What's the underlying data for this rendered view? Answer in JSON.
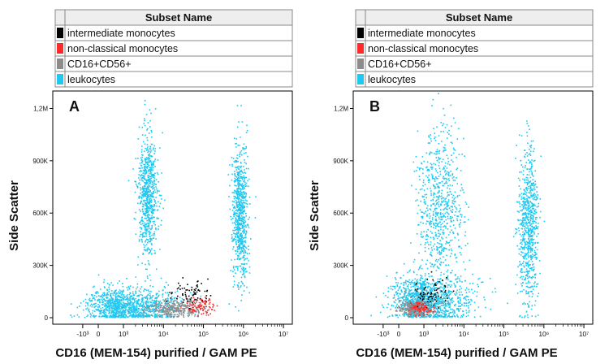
{
  "legend": {
    "header": "Subset Name",
    "entries": [
      {
        "name": "intermediate monocytes",
        "color": "#000000"
      },
      {
        "name": "non-classical monocytes",
        "color": "#ff2a2a"
      },
      {
        "name": "CD16+CD56+",
        "color": "#8c8c8c"
      },
      {
        "name": "leukocytes",
        "color": "#1ec8f0"
      }
    ]
  },
  "chart_data": [
    {
      "type": "scatter",
      "panel_label": "A",
      "xlabel": "CD16 (MEM-154) purified / GAM PE",
      "ylabel": "Side Scatter",
      "x_scale": "biexponential",
      "x_tick_labels": [
        "-10³",
        "0",
        "10³",
        "10⁴",
        "10⁵",
        "10⁶",
        "10⁷"
      ],
      "x_tick_values": [
        -1000,
        0,
        1000,
        10000,
        100000,
        1000000,
        10000000
      ],
      "y_tick_labels": [
        "0",
        "300K",
        "600K",
        "900K",
        "1,2M"
      ],
      "y_tick_values": [
        0,
        300000,
        600000,
        900000,
        1200000
      ],
      "ylim": [
        0,
        1300000
      ],
      "populations": [
        {
          "name": "leukocytes",
          "clusters": [
            {
              "x_log_center": 3.6,
              "x_log_spread": 0.12,
              "y_center": 700000,
              "y_spread": 190000
            },
            {
              "x_log_center": 5.9,
              "x_log_spread": 0.1,
              "y_center": 600000,
              "y_spread": 200000
            },
            {
              "x_log_center": 3.0,
              "x_log_spread": 0.7,
              "y_center": 70000,
              "y_spread": 55000
            }
          ]
        },
        {
          "name": "CD16+CD56+",
          "clusters": [
            {
              "x_log_center": 4.3,
              "x_log_spread": 0.35,
              "y_center": 50000,
              "y_spread": 25000
            }
          ]
        },
        {
          "name": "non-classical monocytes",
          "clusters": [
            {
              "x_log_center": 4.9,
              "x_log_spread": 0.2,
              "y_center": 70000,
              "y_spread": 25000
            }
          ]
        },
        {
          "name": "intermediate monocytes",
          "clusters": [
            {
              "x_log_center": 4.6,
              "x_log_spread": 0.25,
              "y_center": 140000,
              "y_spread": 40000
            }
          ]
        }
      ]
    },
    {
      "type": "scatter",
      "panel_label": "B",
      "xlabel": "CD16 (MEM-154) purified / GAM PE",
      "ylabel": "Side Scatter",
      "x_scale": "biexponential",
      "x_tick_labels": [
        "-10³",
        "0",
        "10³",
        "10⁴",
        "10⁵",
        "10⁶",
        "10⁷"
      ],
      "x_tick_values": [
        -1000,
        0,
        1000,
        10000,
        100000,
        1000000,
        10000000
      ],
      "y_tick_labels": [
        "0",
        "300K",
        "600K",
        "900K",
        "1,2M"
      ],
      "y_tick_values": [
        0,
        300000,
        600000,
        900000,
        1200000
      ],
      "ylim": [
        0,
        1300000
      ],
      "populations": [
        {
          "name": "leukocytes",
          "clusters": [
            {
              "x_log_center": 3.4,
              "x_log_spread": 0.3,
              "y_center": 620000,
              "y_spread": 230000
            },
            {
              "x_log_center": 5.6,
              "x_log_spread": 0.12,
              "y_center": 520000,
              "y_spread": 220000
            },
            {
              "x_log_center": 3.0,
              "x_log_spread": 0.6,
              "y_center": 100000,
              "y_spread": 70000
            }
          ]
        },
        {
          "name": "CD16+CD56+",
          "clusters": [
            {
              "x_log_center": 2.7,
              "x_log_spread": 0.35,
              "y_center": 60000,
              "y_spread": 25000
            }
          ]
        },
        {
          "name": "non-classical monocytes",
          "clusters": [
            {
              "x_log_center": 2.8,
              "x_log_spread": 0.2,
              "y_center": 60000,
              "y_spread": 20000
            }
          ]
        },
        {
          "name": "intermediate monocytes",
          "clusters": [
            {
              "x_log_center": 3.2,
              "x_log_spread": 0.3,
              "y_center": 150000,
              "y_spread": 45000
            }
          ]
        }
      ]
    }
  ]
}
